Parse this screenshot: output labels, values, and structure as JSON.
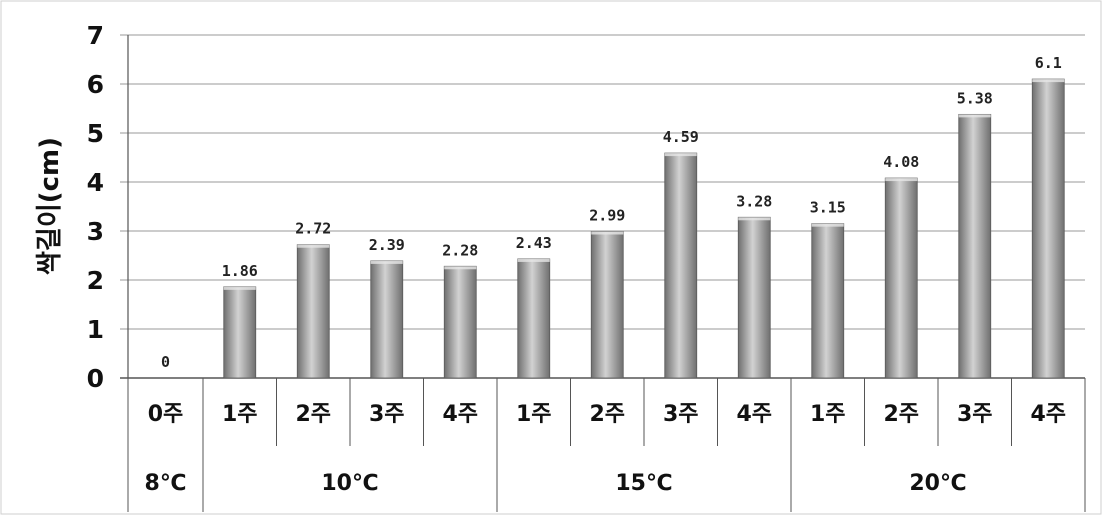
{
  "chart_data": {
    "type": "bar",
    "ylabel": "싹길이(cm)",
    "ylim": [
      0,
      7
    ],
    "yticks": [
      "0",
      "1",
      "2",
      "3",
      "4",
      "5",
      "6",
      "7"
    ],
    "grid": true,
    "categories": [
      "0주",
      "1주",
      "2주",
      "3주",
      "4주",
      "1주",
      "2주",
      "3주",
      "4주",
      "1주",
      "2주",
      "3주",
      "4주"
    ],
    "values": [
      0,
      1.86,
      2.72,
      2.39,
      2.28,
      2.43,
      2.99,
      4.59,
      3.28,
      3.15,
      4.08,
      5.38,
      6.1
    ],
    "value_labels": [
      "0",
      "1.86",
      "2.72",
      "2.39",
      "2.28",
      "2.43",
      "2.99",
      "4.59",
      "3.28",
      "3.15",
      "4.08",
      "5.38",
      "6.1"
    ],
    "groups": [
      {
        "label": "8℃",
        "count": 1
      },
      {
        "label": "10℃",
        "count": 4
      },
      {
        "label": "15℃",
        "count": 4
      },
      {
        "label": "20℃",
        "count": 4
      }
    ],
    "colors": {
      "bar_dark": "#6f6f6f",
      "bar_light": "#d2d2d2",
      "grid": "#9a9a9a",
      "axis": "#555555",
      "background": "#ffffff",
      "frame": "#cfcfcf"
    }
  }
}
